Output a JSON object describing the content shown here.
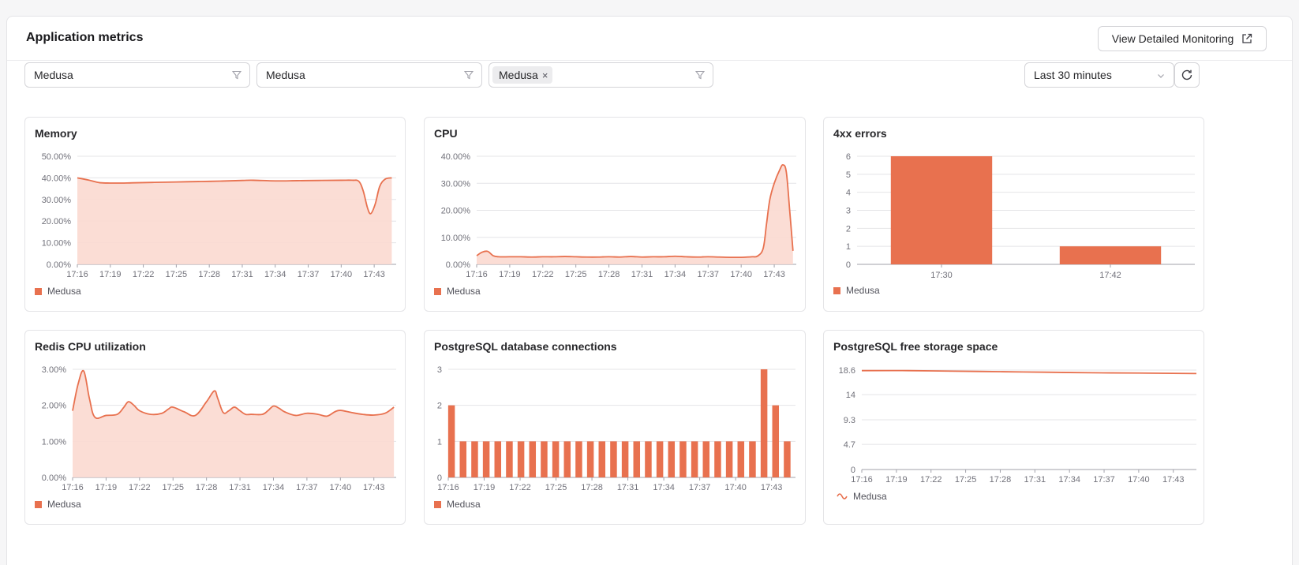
{
  "header": {
    "title": "Application metrics",
    "monitor_label": "View Detailed Monitoring"
  },
  "filters": {
    "f1": {
      "value": "Medusa"
    },
    "f2": {
      "value": "Medusa"
    },
    "f3": {
      "chip": "Medusa",
      "chip_remove": "×"
    },
    "time_range": "Last 30 minutes"
  },
  "icons": {
    "external": "external-link-icon",
    "funnel": "funnel-icon",
    "chevron": "chevron-down-icon",
    "refresh": "refresh-icon"
  },
  "colors": {
    "accent": "#e8714f",
    "fill": "#fbd9d0",
    "grid": "#e4e4e7",
    "axis": "#a1a1aa"
  },
  "time_ticks": [
    "17:16",
    "17:19",
    "17:22",
    "17:25",
    "17:28",
    "17:31",
    "17:34",
    "17:37",
    "17:40",
    "17:43"
  ],
  "cards": [
    {
      "id": "memory",
      "title": "Memory",
      "legend": "Medusa",
      "legend_style": "square",
      "type": "area",
      "x_start": 0,
      "x_end": 29,
      "y_ticks": [
        "50.00%",
        "40.00%",
        "30.00%",
        "20.00%",
        "10.00%",
        "0.00%"
      ],
      "y_max": 50,
      "points": [
        [
          0,
          40
        ],
        [
          1,
          39
        ],
        [
          2,
          37.8
        ],
        [
          3,
          37.6
        ],
        [
          4,
          37.6
        ],
        [
          5,
          37.7
        ],
        [
          7,
          37.9
        ],
        [
          9,
          38.1
        ],
        [
          11,
          38.3
        ],
        [
          13,
          38.5
        ],
        [
          15,
          38.8
        ],
        [
          16,
          38.9
        ],
        [
          18,
          38.6
        ],
        [
          20,
          38.7
        ],
        [
          22,
          38.8
        ],
        [
          24,
          38.9
        ],
        [
          25,
          38.9
        ],
        [
          25.6,
          38.4
        ],
        [
          26,
          34
        ],
        [
          26.4,
          26
        ],
        [
          26.7,
          23.5
        ],
        [
          27.1,
          28
        ],
        [
          27.5,
          36
        ],
        [
          28,
          39.4
        ],
        [
          28.6,
          40
        ]
      ]
    },
    {
      "id": "cpu",
      "title": "CPU",
      "legend": "Medusa",
      "legend_style": "square",
      "type": "area",
      "x_start": 0,
      "x_end": 29,
      "y_ticks": [
        "40.00%",
        "30.00%",
        "20.00%",
        "10.00%",
        "0.00%"
      ],
      "y_max": 40,
      "points": [
        [
          0,
          3.2
        ],
        [
          0.5,
          4.5
        ],
        [
          1,
          4.8
        ],
        [
          1.5,
          3.2
        ],
        [
          2,
          2.8
        ],
        [
          3,
          2.8
        ],
        [
          4,
          2.8
        ],
        [
          5,
          2.7
        ],
        [
          6,
          2.8
        ],
        [
          7,
          2.8
        ],
        [
          8,
          2.9
        ],
        [
          9,
          2.8
        ],
        [
          10,
          2.7
        ],
        [
          11,
          2.7
        ],
        [
          12,
          2.8
        ],
        [
          13,
          2.7
        ],
        [
          14,
          2.9
        ],
        [
          15,
          2.7
        ],
        [
          16,
          2.8
        ],
        [
          17,
          2.8
        ],
        [
          18,
          3.0
        ],
        [
          19,
          2.8
        ],
        [
          20,
          2.7
        ],
        [
          21,
          2.8
        ],
        [
          22,
          2.7
        ],
        [
          23,
          2.6
        ],
        [
          24,
          2.6
        ],
        [
          25,
          2.8
        ],
        [
          25.5,
          3.1
        ],
        [
          26,
          6
        ],
        [
          26.3,
          15
        ],
        [
          26.6,
          24
        ],
        [
          27,
          30
        ],
        [
          27.5,
          35
        ],
        [
          27.8,
          36.8
        ],
        [
          28.1,
          34
        ],
        [
          28.4,
          20
        ],
        [
          28.7,
          5
        ]
      ]
    },
    {
      "id": "errors",
      "title": "4xx errors",
      "legend": "Medusa",
      "legend_style": "square",
      "type": "bar_cat",
      "y_ticks": [
        "6",
        "5",
        "4",
        "3",
        "2",
        "1",
        "0"
      ],
      "y_max": 6,
      "categories": [
        "17:30",
        "17:42"
      ],
      "values": [
        6,
        1
      ]
    },
    {
      "id": "redis",
      "title": "Redis CPU utilization",
      "legend": "Medusa",
      "legend_style": "square",
      "type": "area",
      "x_start": 0,
      "x_end": 29,
      "y_ticks": [
        "3.00%",
        "2.00%",
        "1.00%",
        "0.00%"
      ],
      "y_max": 3,
      "points": [
        [
          0,
          1.85
        ],
        [
          0.5,
          2.6
        ],
        [
          1,
          2.95
        ],
        [
          1.5,
          2.2
        ],
        [
          2,
          1.67
        ],
        [
          3,
          1.72
        ],
        [
          4,
          1.75
        ],
        [
          4.6,
          1.95
        ],
        [
          5,
          2.1
        ],
        [
          5.5,
          2.0
        ],
        [
          6,
          1.85
        ],
        [
          7,
          1.75
        ],
        [
          8,
          1.78
        ],
        [
          8.6,
          1.9
        ],
        [
          9,
          1.95
        ],
        [
          10,
          1.82
        ],
        [
          11,
          1.72
        ],
        [
          12,
          2.1
        ],
        [
          12.7,
          2.4
        ],
        [
          13,
          2.2
        ],
        [
          13.5,
          1.8
        ],
        [
          14,
          1.85
        ],
        [
          14.5,
          1.95
        ],
        [
          15,
          1.85
        ],
        [
          15.5,
          1.75
        ],
        [
          16,
          1.75
        ],
        [
          17,
          1.75
        ],
        [
          17.5,
          1.85
        ],
        [
          18,
          1.98
        ],
        [
          18.5,
          1.92
        ],
        [
          19,
          1.82
        ],
        [
          20,
          1.72
        ],
        [
          21,
          1.78
        ],
        [
          22,
          1.75
        ],
        [
          22.8,
          1.7
        ],
        [
          23.5,
          1.82
        ],
        [
          24,
          1.86
        ],
        [
          25,
          1.8
        ],
        [
          26,
          1.75
        ],
        [
          27,
          1.73
        ],
        [
          28,
          1.78
        ],
        [
          28.8,
          1.95
        ]
      ]
    },
    {
      "id": "pg_conn",
      "title": "PostgreSQL database connections",
      "legend": "Medusa",
      "legend_style": "square",
      "type": "bar_time",
      "x_start": 0,
      "x_end": 29,
      "y_ticks": [
        "3",
        "2",
        "1",
        "0"
      ],
      "y_max": 3,
      "values": [
        2,
        1,
        1,
        1,
        1,
        1,
        1,
        1,
        1,
        1,
        1,
        1,
        1,
        1,
        1,
        1,
        1,
        1,
        1,
        1,
        1,
        1,
        1,
        1,
        1,
        1,
        1,
        3,
        2,
        1
      ]
    },
    {
      "id": "pg_storage",
      "title": "PostgreSQL free storage space",
      "legend": "Medusa",
      "legend_style": "line",
      "type": "line",
      "x_start": 0,
      "x_end": 29,
      "y_ticks": [
        "18.6",
        "14",
        "9.3",
        "4.7",
        "0"
      ],
      "y_values": [
        18.6,
        14,
        9.3,
        4.7,
        0
      ],
      "y_max": 18.6,
      "points": [
        [
          0,
          18.5
        ],
        [
          4,
          18.5
        ],
        [
          8,
          18.4
        ],
        [
          12,
          18.3
        ],
        [
          16,
          18.2
        ],
        [
          20,
          18.1
        ],
        [
          24,
          18.05
        ],
        [
          29,
          17.95
        ]
      ]
    }
  ]
}
